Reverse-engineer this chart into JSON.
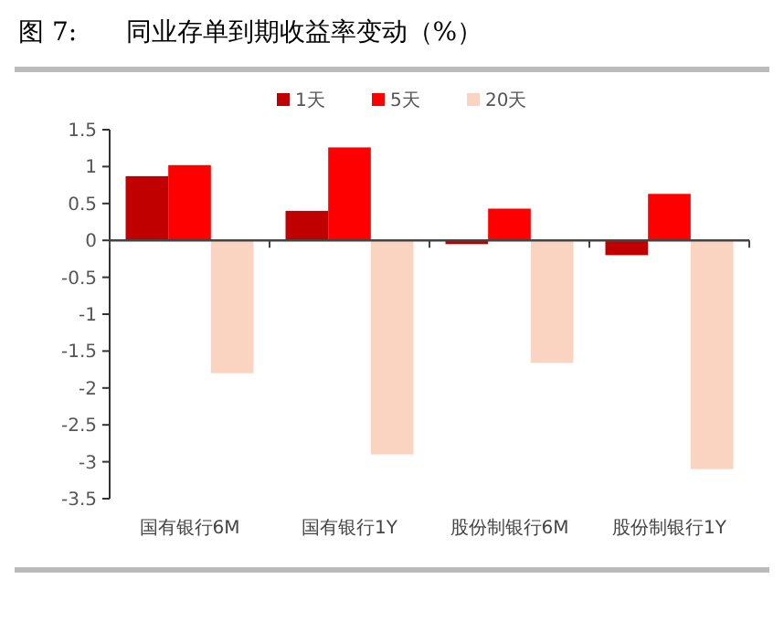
{
  "chart_data": {
    "type": "bar",
    "title": "图 7:      同业存单到期收益率变动（%）",
    "categories": [
      "国有银行6M",
      "国有银行1Y",
      "股份制银行6M",
      "股份制银行1Y"
    ],
    "series": [
      {
        "name": "1天",
        "color": "#c00000",
        "values": [
          0.87,
          0.4,
          -0.05,
          -0.2
        ]
      },
      {
        "name": "5天",
        "color": "#ff0000",
        "values": [
          1.02,
          1.26,
          0.43,
          0.63
        ]
      },
      {
        "name": "20天",
        "color": "#fad4c0",
        "values": [
          -1.8,
          -2.9,
          -1.66,
          -3.1
        ]
      }
    ],
    "ylim": [
      -3.5,
      1.5
    ],
    "yticks": [
      {
        "value": -3.5,
        "label": "-3.5"
      },
      {
        "value": -3,
        "label": "-3"
      },
      {
        "value": -2.5,
        "label": "-2.5"
      },
      {
        "value": -2,
        "label": "-2"
      },
      {
        "value": -1.5,
        "label": "-1.5"
      },
      {
        "value": -1,
        "label": "-1"
      },
      {
        "value": -0.5,
        "label": "-0.5"
      },
      0,
      0.5,
      1,
      1.5
    ],
    "legend": "top"
  }
}
